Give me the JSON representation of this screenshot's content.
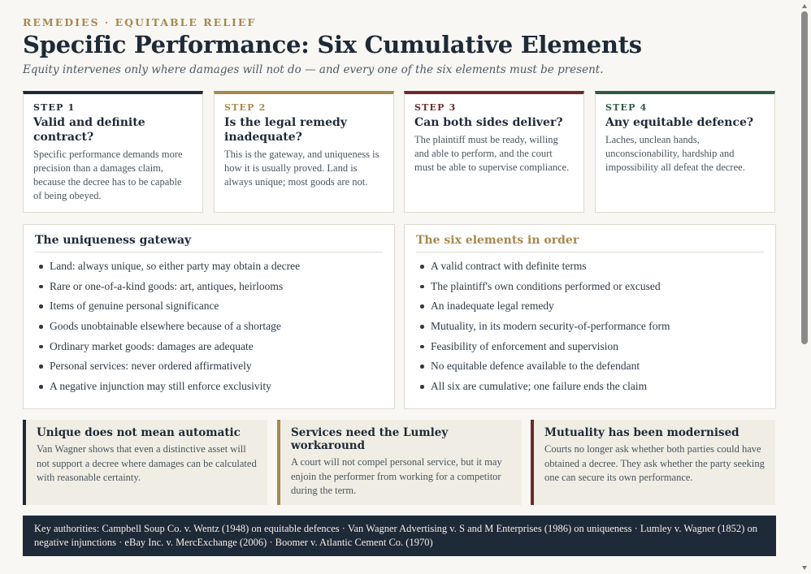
{
  "header": {
    "eyebrow": "REMEDIES · EQUITABLE RELIEF",
    "title": "Specific Performance: Six Cumulative Elements",
    "subtitle": "Equity intervenes only where damages will not do — and every one of the six elements must be present."
  },
  "steps": [
    {
      "label": "STEP 1",
      "title": "Valid and definite contract?",
      "body": "Specific performance demands more precision than a damages claim, because the decree has to be capable of being obeyed.",
      "color": "#1e2a38"
    },
    {
      "label": "STEP 2",
      "title": "Is the legal remedy inadequate?",
      "body": "This is the gateway, and uniqueness is how it is usually proved. Land is always unique; most goods are not.",
      "color": "#a8884f"
    },
    {
      "label": "STEP 3",
      "title": "Can both sides deliver?",
      "body": "The plaintiff must be ready, willing and able to perform, and the court must be able to supervise compliance.",
      "color": "#6e2a2a"
    },
    {
      "label": "STEP 4",
      "title": "Any equitable defence?",
      "body": "Laches, unclean hands, unconscionability, hardship and impossibility all defeat the decree.",
      "color": "#2f5a46"
    }
  ],
  "panels": {
    "uniqueness": {
      "title": "The uniqueness gateway",
      "title_color": "#1e2a38",
      "items": [
        "Land: always unique, so either party may obtain a decree",
        "Rare or one-of-a-kind goods: art, antiques, heirlooms",
        "Items of genuine personal significance",
        "Goods unobtainable elsewhere because of a shortage",
        "Ordinary market goods: damages are adequate",
        "Personal services: never ordered affirmatively",
        "A negative injunction may still enforce exclusivity"
      ]
    },
    "elements": {
      "title": "The six elements in order",
      "title_color": "#a8884f",
      "items": [
        "A valid contract with definite terms",
        "The plaintiff's own conditions performed or excused",
        "An inadequate legal remedy",
        "Mutuality, in its modern security-of-performance form",
        "Feasibility of enforcement and supervision",
        "No equitable defence available to the defendant",
        "All six are cumulative; one failure ends the claim"
      ]
    }
  },
  "notes": [
    {
      "title": "Unique does not mean automatic",
      "body": "Van Wagner shows that even a distinctive asset will not support a decree where damages can be calculated with reasonable certainty.",
      "color": "#1e2a38"
    },
    {
      "title": "Services need the Lumley workaround",
      "body": "A court will not compel personal service, but it may enjoin the performer from working for a competitor during the term.",
      "color": "#a8884f"
    },
    {
      "title": "Mutuality has been modernised",
      "body": "Courts no longer ask whether both parties could have obtained a decree. They ask whether the party seeking one can secure its own performance.",
      "color": "#6e2a2a"
    }
  ],
  "footer": {
    "text": "Key authorities: Campbell Soup Co. v. Wentz (1948) on equitable defences · Van Wagner Advertising v. S and M Enterprises (1986) on uniqueness · Lumley v. Wagner (1852) on negative injunctions · eBay Inc. v. MercExchange (2006) · Boomer v. Atlantic Cement Co. (1970)"
  },
  "icons": {
    "scroll_up": "chevron-up-icon",
    "scroll_down": "chevron-down-icon"
  }
}
